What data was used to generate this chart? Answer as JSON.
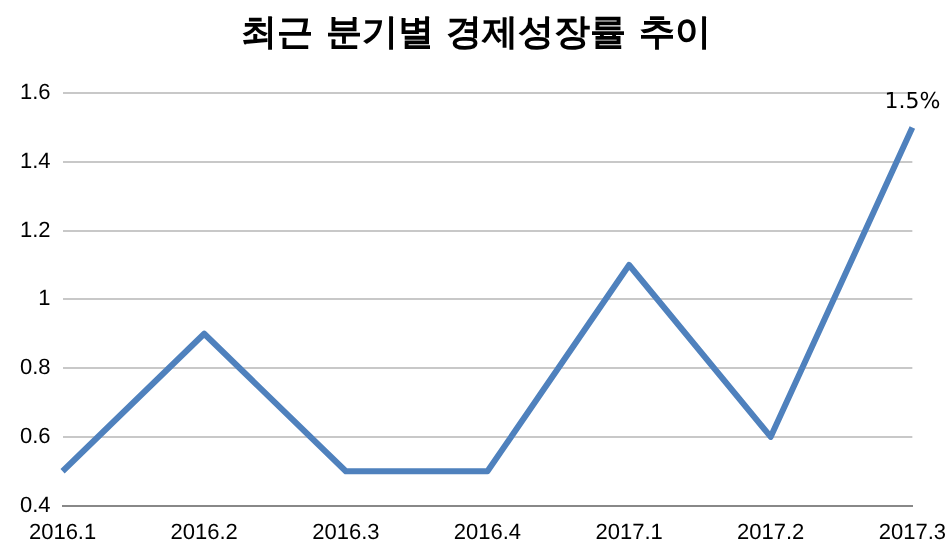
{
  "chart_data": {
    "type": "line",
    "title": "최근 분기별 경제성장률 추이",
    "categories": [
      "2016.1",
      "2016.2",
      "2016.3",
      "2016.4",
      "2017.1",
      "2017.2",
      "2017.3"
    ],
    "series": [
      {
        "color": "#4f81bd",
        "values": [
          0.5,
          0.9,
          0.5,
          0.5,
          1.1,
          0.6,
          1.5
        ]
      }
    ],
    "ylim": [
      0.4,
      1.6
    ],
    "yticks": [
      0.4,
      0.6,
      0.8,
      1,
      1.2,
      1.4,
      1.6
    ],
    "grid": "y",
    "legend": false,
    "marker": "none",
    "line_style": "solid",
    "annotations": [
      {
        "text": "1.5%",
        "x": "2017.3",
        "y": 1.5
      }
    ]
  }
}
